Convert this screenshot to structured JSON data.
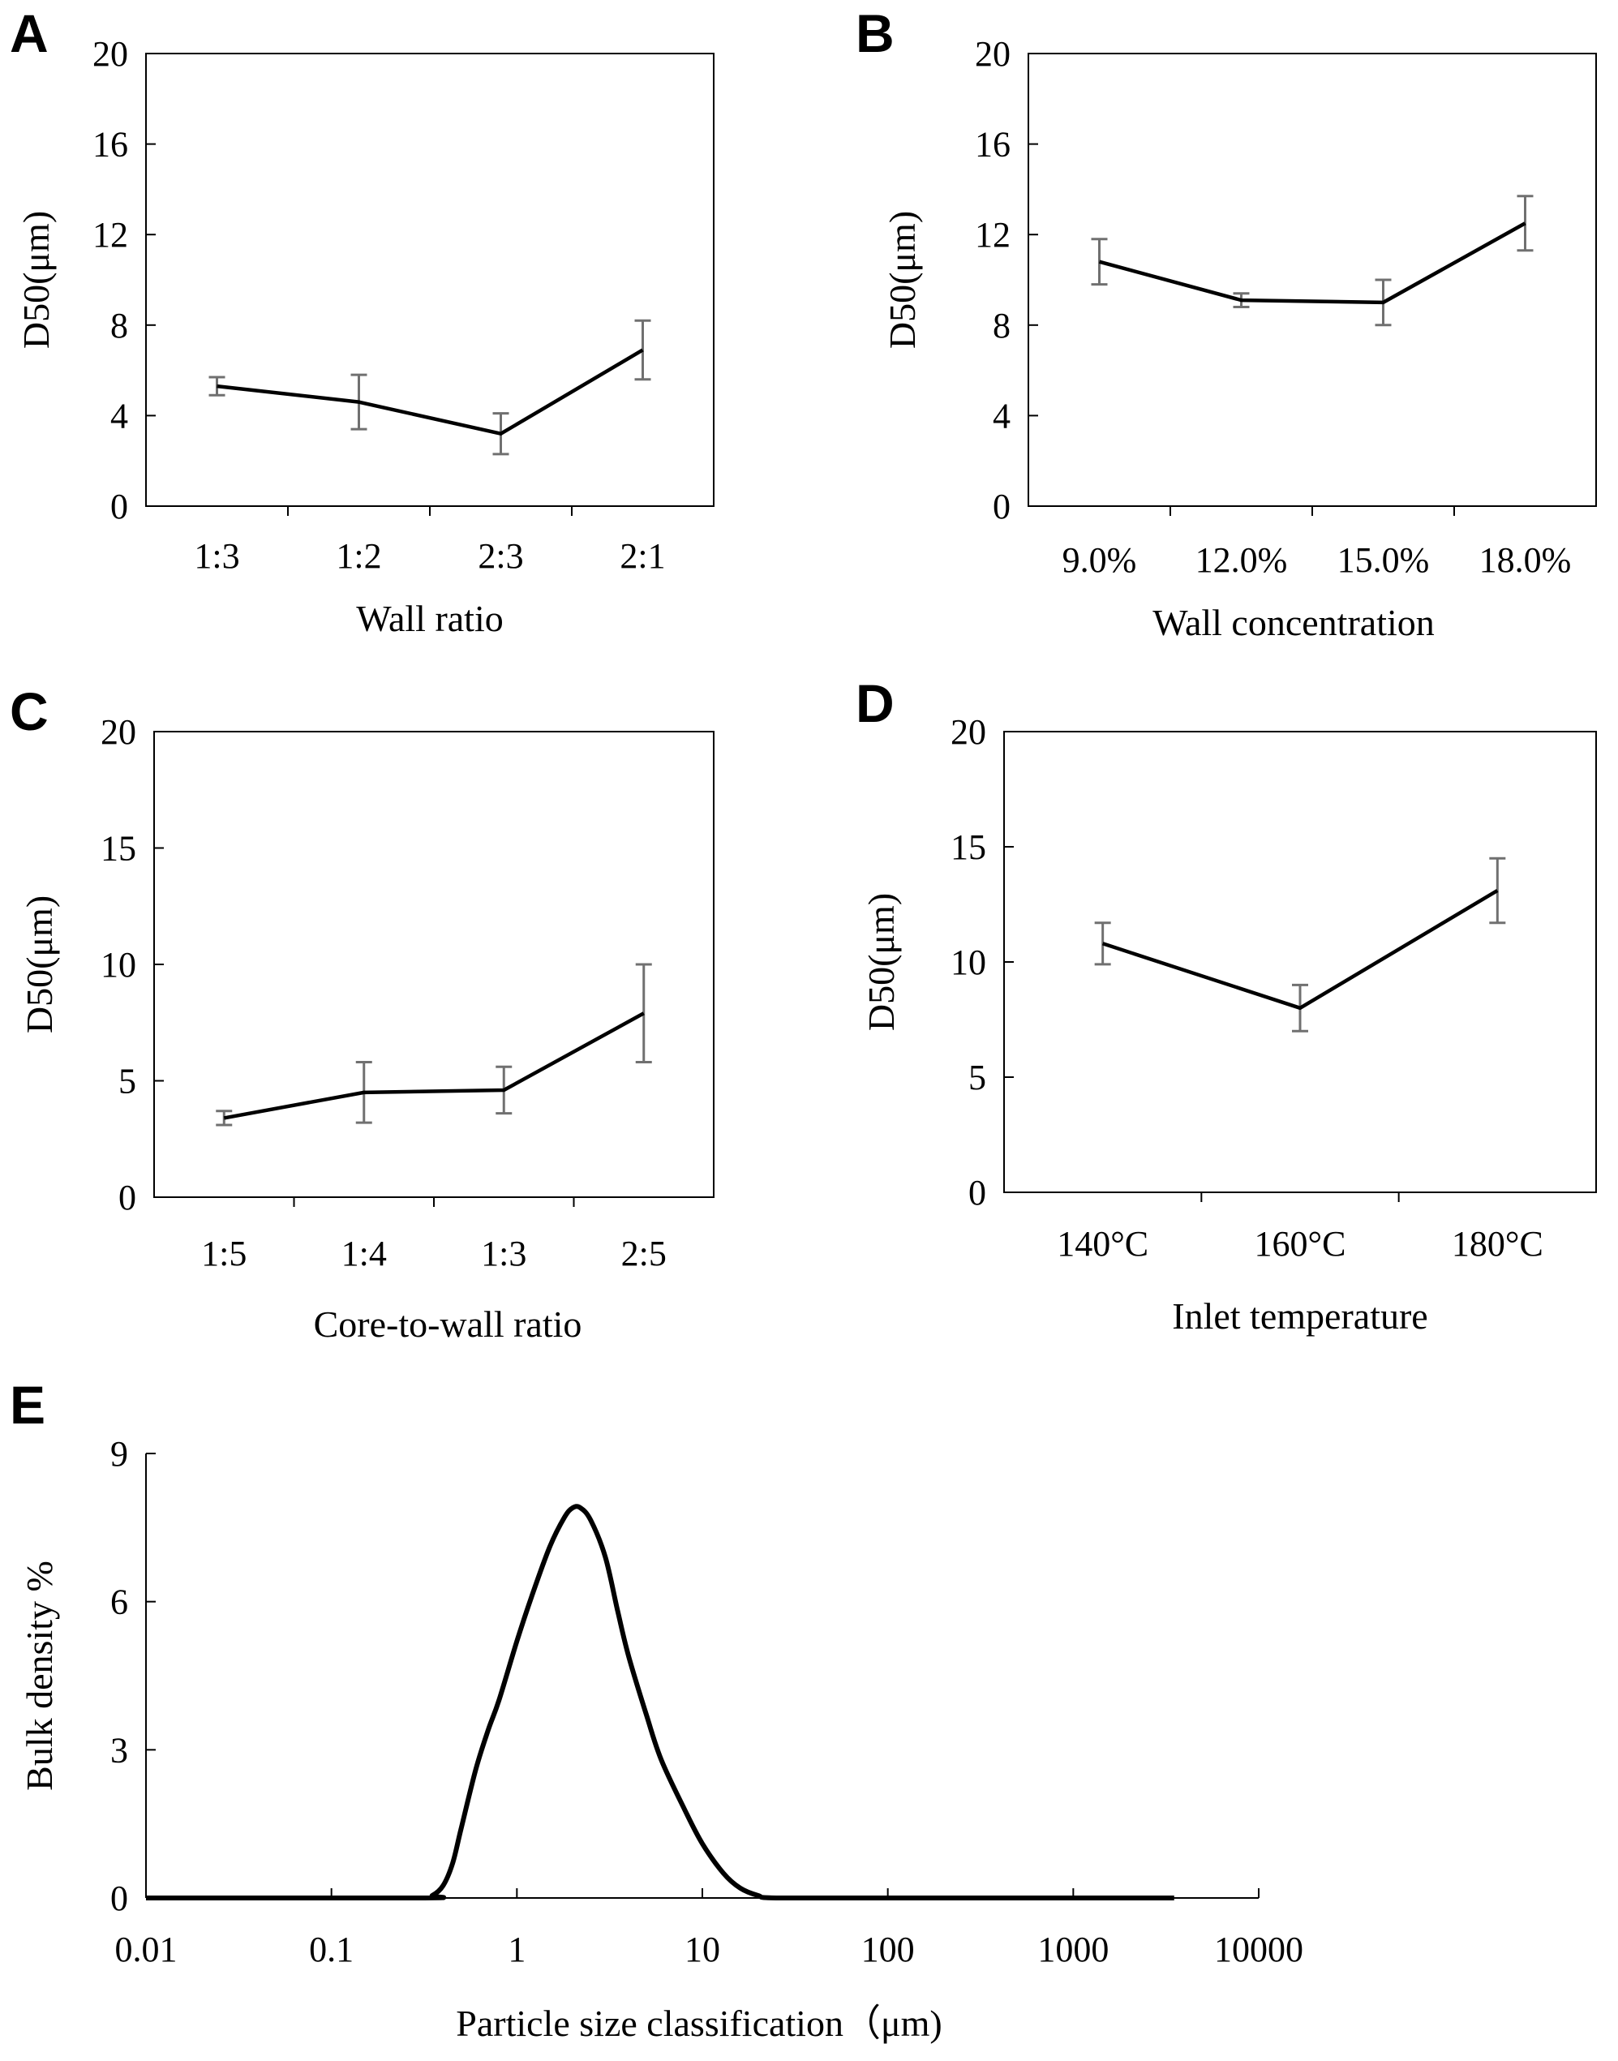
{
  "chart_data": [
    {
      "panel": "A",
      "type": "line",
      "categories": [
        "1:3",
        "1:2",
        "2:3",
        "2:1"
      ],
      "values": [
        5.3,
        4.6,
        3.2,
        6.9
      ],
      "errors": [
        0.4,
        1.2,
        0.9,
        1.3
      ],
      "ylim": [
        0,
        20
      ],
      "yticks": [
        0,
        4,
        8,
        12,
        16,
        20
      ],
      "xlabel": "Wall ratio",
      "ylabel": "D50(μm)"
    },
    {
      "panel": "B",
      "type": "line",
      "categories": [
        "9.0%",
        "12.0%",
        "15.0%",
        "18.0%"
      ],
      "values": [
        10.8,
        9.1,
        9.0,
        12.5
      ],
      "errors": [
        1.0,
        0.3,
        1.0,
        1.2
      ],
      "ylim": [
        0,
        20
      ],
      "yticks": [
        0,
        4,
        8,
        12,
        16,
        20
      ],
      "xlabel": "Wall concentration",
      "ylabel": "D50(μm)"
    },
    {
      "panel": "C",
      "type": "line",
      "categories": [
        "1:5",
        "1:4",
        "1:3",
        "2:5"
      ],
      "values": [
        3.4,
        4.5,
        4.6,
        7.9
      ],
      "errors": [
        0.3,
        1.3,
        1.0,
        2.1
      ],
      "ylim": [
        0,
        20
      ],
      "yticks": [
        0,
        5,
        10,
        15,
        20
      ],
      "xlabel": "Core-to-wall ratio",
      "ylabel": "D50(μm)"
    },
    {
      "panel": "D",
      "type": "line",
      "categories": [
        "140°C",
        "160°C",
        "180°C"
      ],
      "values": [
        10.8,
        8.0,
        13.1
      ],
      "errors": [
        0.9,
        1.0,
        1.4
      ],
      "ylim": [
        0,
        20
      ],
      "yticks": [
        0,
        5,
        10,
        15,
        20
      ],
      "xlabel": "Inlet temperature",
      "ylabel": "D50(μm)"
    },
    {
      "panel": "E",
      "type": "line",
      "xscale": "log",
      "xlim": [
        0.01,
        10000
      ],
      "ylim": [
        0,
        9
      ],
      "xticks": [
        "0.01",
        "0.1",
        "1",
        "10",
        "100",
        "1000",
        "10000"
      ],
      "yticks": [
        0,
        3,
        6,
        9
      ],
      "x": [
        0.01,
        0.3,
        0.35,
        0.4,
        0.45,
        0.5,
        0.6,
        0.7,
        0.8,
        1.0,
        1.2,
        1.5,
        1.8,
        2.0,
        2.2,
        2.5,
        3.0,
        3.5,
        4.0,
        5.0,
        6.0,
        8.0,
        10,
        13,
        16,
        20,
        25,
        100,
        1000,
        3500
      ],
      "y": [
        0,
        0,
        0.05,
        0.25,
        0.7,
        1.4,
        2.6,
        3.4,
        4.0,
        5.2,
        6.1,
        7.1,
        7.7,
        7.9,
        7.9,
        7.65,
        6.9,
        5.8,
        4.9,
        3.7,
        2.8,
        1.8,
        1.1,
        0.5,
        0.2,
        0.05,
        0,
        0,
        0,
        0
      ],
      "xlabel": "Particle size classification（μm)",
      "ylabel": "Bulk density %"
    }
  ]
}
